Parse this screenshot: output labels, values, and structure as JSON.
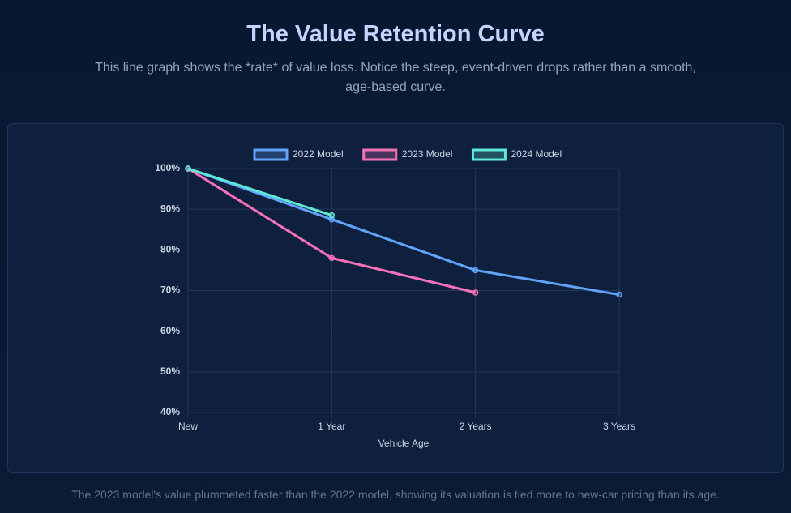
{
  "header": {
    "title": "The Value Retention Curve",
    "subtitle": "This line graph shows the *rate* of value loss. Notice the steep, event-driven drops rather than a smooth, age-based curve."
  },
  "chart_data": {
    "type": "line",
    "categories": [
      "New",
      "1 Year",
      "2 Years",
      "3 Years"
    ],
    "x_label": "Vehicle Age",
    "series": [
      {
        "name": "2022 Model",
        "color": "#60a5fa",
        "values": [
          100,
          87.5,
          75,
          69
        ]
      },
      {
        "name": "2023 Model",
        "color": "#f472b6",
        "values": [
          100,
          78,
          69.5,
          null
        ]
      },
      {
        "name": "2024 Model",
        "color": "#5eead4",
        "values": [
          100,
          88.5,
          null,
          null
        ]
      }
    ],
    "ylim": [
      40,
      100
    ],
    "yticks": [
      {
        "value": 40,
        "label": "40%"
      },
      {
        "value": 50,
        "label": "50%"
      },
      {
        "value": 60,
        "label": "60%"
      },
      {
        "value": 70,
        "label": "70%"
      },
      {
        "value": 80,
        "label": "80%"
      },
      {
        "value": 90,
        "label": "90%"
      },
      {
        "value": 100,
        "label": "100%"
      }
    ],
    "grid": true,
    "legend": "top"
  },
  "footer": {
    "note": "The 2023 model's value plummeted faster than the 2022 model, showing its valuation is tied more to new-car pricing than its age."
  }
}
